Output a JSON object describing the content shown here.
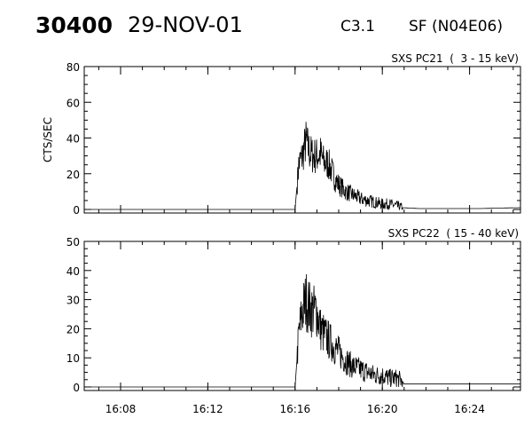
{
  "header": {
    "event_id": "30400",
    "date": "29-NOV-01",
    "flare_class": "C3.1",
    "flare_location": "SF (N04E06)"
  },
  "chart_data": [
    {
      "type": "line",
      "title": "SXS PC21  (  3 - 15 keV)",
      "ylabel": "CTS/SEC",
      "xlabel": "",
      "xlim": [
        "16:06:20",
        "16:26:20"
      ],
      "ylim": [
        0,
        80
      ],
      "yticks": [
        0,
        20,
        40,
        60,
        80
      ],
      "xticks": [
        "16:08",
        "16:12",
        "16:16",
        "16:20",
        "16:24"
      ],
      "series": [
        {
          "x": [
            "16:16:00",
            "16:16:10",
            "16:16:20",
            "16:16:30",
            "16:16:40",
            "16:16:50",
            "16:17:00",
            "16:17:10",
            "16:17:20",
            "16:17:30",
            "16:17:40",
            "16:17:50",
            "16:18:00",
            "16:18:20",
            "16:18:40",
            "16:19:00",
            "16:19:20",
            "16:19:40",
            "16:20:00",
            "16:20:20",
            "16:20:40",
            "16:20:55",
            "16:21:40",
            "16:23:00",
            "16:24:30",
            "16:25:30",
            "16:26:20"
          ],
          "y": [
            0,
            25,
            30,
            38,
            32,
            30,
            30,
            31,
            26,
            26,
            22,
            17,
            14,
            10,
            8,
            6,
            5,
            4,
            3,
            3,
            2,
            1,
            0.5,
            0.5,
            0.5,
            0.8,
            1
          ]
        }
      ]
    },
    {
      "type": "line",
      "title": "SXS PC22  ( 15 - 40 keV)",
      "ylabel": "",
      "xlabel": "",
      "xlim": [
        "16:06:20",
        "16:26:20"
      ],
      "ylim": [
        0,
        50
      ],
      "yticks": [
        0,
        10,
        20,
        30,
        40,
        50
      ],
      "xticks": [
        "16:08",
        "16:12",
        "16:16",
        "16:20",
        "16:24"
      ],
      "series": [
        {
          "x": [
            "16:16:00",
            "16:16:10",
            "16:16:20",
            "16:16:30",
            "16:16:40",
            "16:16:50",
            "16:17:00",
            "16:17:10",
            "16:17:20",
            "16:17:40",
            "16:18:00",
            "16:18:20",
            "16:18:40",
            "16:19:00",
            "16:19:20",
            "16:19:40",
            "16:20:00",
            "16:20:20",
            "16:20:40",
            "16:20:55",
            "16:21:00",
            "16:23:00",
            "16:26:20"
          ],
          "y": [
            0,
            18,
            26,
            30,
            27,
            26,
            26,
            20,
            18,
            15,
            12,
            9,
            7,
            6,
            5,
            4,
            4,
            3,
            3,
            2,
            1,
            1,
            1
          ]
        }
      ]
    }
  ]
}
